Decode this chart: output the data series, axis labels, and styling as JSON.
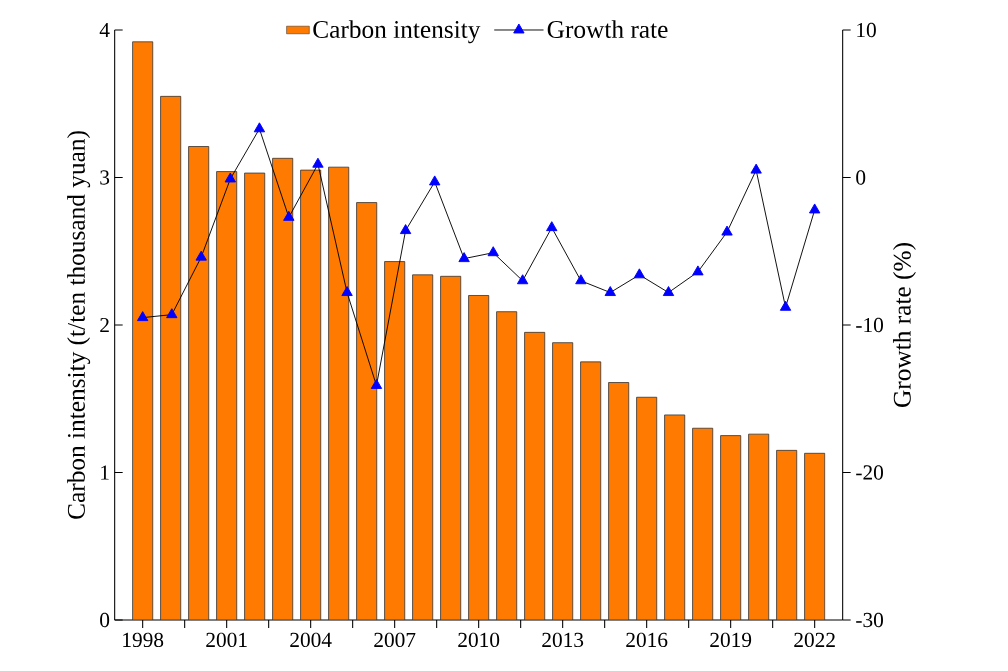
{
  "chart_data": {
    "type": "bar",
    "ylabel": "Carbon intensity (t/ten thousand yuan)",
    "y2label": "Growth rate (%)",
    "x": [
      1998,
      1999,
      2000,
      2001,
      2002,
      2003,
      2004,
      2005,
      2006,
      2007,
      2008,
      2009,
      2010,
      2011,
      2012,
      2013,
      2014,
      2015,
      2016,
      2017,
      2018,
      2019,
      2020,
      2021,
      2022
    ],
    "series": [
      {
        "name": "Carbon intensity",
        "color": "#ff7a00",
        "values": [
          3.92,
          3.55,
          3.21,
          3.04,
          3.03,
          3.13,
          3.05,
          3.07,
          2.83,
          2.43,
          2.34,
          2.33,
          2.2,
          2.09,
          1.95,
          1.88,
          1.75,
          1.61,
          1.51,
          1.39,
          1.3,
          1.25,
          1.26,
          1.15,
          1.13
        ]
      },
      {
        "name": "Growth rate",
        "type": "line",
        "axis": "y2",
        "color": "#0000ff",
        "marker": "triangle",
        "x": [
          1998,
          1999.04,
          2000.09,
          2001.13,
          2002.17,
          2003.22,
          2004.26,
          2005.3,
          2006.35,
          2007.39,
          2008.43,
          2009.48,
          2010.52,
          2011.57,
          2012.61,
          2013.65,
          2014.7,
          2015.74,
          2016.78,
          2017.83,
          2018.87,
          2019.91,
          2020.96,
          2022
        ],
        "values": [
          -9.5,
          -9.3,
          -5.4,
          -0.1,
          3.3,
          -2.7,
          0.9,
          -7.8,
          -14.1,
          -3.6,
          -0.3,
          -5.5,
          -5.1,
          -7.0,
          -3.4,
          -7.0,
          -7.8,
          -6.6,
          -7.8,
          -6.4,
          -3.7,
          0.5,
          -8.8,
          -2.2
        ]
      }
    ],
    "xlim": [
      1997,
      2023
    ],
    "xticks": [
      1998,
      {
        "value": 1999.5,
        "label": null
      },
      2001,
      {
        "value": 2002.5,
        "label": null
      },
      2004,
      {
        "value": 2005.5,
        "label": null
      },
      2007,
      {
        "value": 2008.5,
        "label": null
      },
      2010,
      {
        "value": 2011.5,
        "label": null
      },
      2013,
      {
        "value": 2014.5,
        "label": null
      },
      2016,
      {
        "value": 2017.5,
        "label": null
      },
      2019,
      {
        "value": 2020.5,
        "label": null
      },
      2022
    ],
    "ylim": [
      0,
      4
    ],
    "yticks": [
      0,
      1,
      2,
      3,
      4
    ],
    "y2lim": [
      -30,
      10
    ],
    "y2ticks": [
      -30,
      -20,
      -10,
      0,
      10
    ],
    "legend": "top",
    "grid": false
  }
}
